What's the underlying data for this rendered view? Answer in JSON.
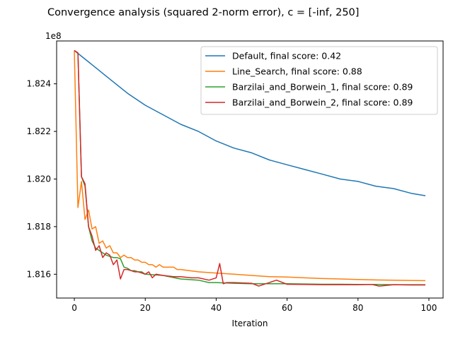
{
  "chart_data": {
    "type": "line",
    "title": "Convergence analysis (squared 2-norm error), c = [-inf, 250]",
    "xlabel": "Iteration",
    "ylabel": "",
    "y_offset_label": "1e8",
    "y_scale": 100000000,
    "xlim": [
      -5,
      104
    ],
    "ylim": [
      181.5,
      182.58
    ],
    "x_ticks": [
      0,
      20,
      40,
      60,
      80,
      100
    ],
    "x_tick_labels": [
      "0",
      "20",
      "40",
      "60",
      "80",
      "100"
    ],
    "y_ticks": [
      181.6,
      181.8,
      182.0,
      182.2,
      182.4
    ],
    "y_tick_labels": [
      "1.816",
      "1.818",
      "1.820",
      "1.822",
      "1.824"
    ],
    "legend_position": "top-right",
    "series": [
      {
        "name": "Default, final score: 0.42",
        "color": "#1f77b4",
        "x": [
          0,
          5,
          10,
          15,
          20,
          25,
          30,
          35,
          40,
          45,
          50,
          55,
          60,
          65,
          70,
          75,
          80,
          85,
          90,
          95,
          99
        ],
        "y": [
          182.54,
          182.48,
          182.42,
          182.36,
          182.31,
          182.27,
          182.23,
          182.2,
          182.16,
          182.13,
          182.11,
          182.08,
          182.06,
          182.04,
          182.02,
          182.0,
          181.99,
          181.97,
          181.96,
          181.94,
          181.93
        ]
      },
      {
        "name": "Line_Search, final score: 0.88",
        "color": "#ff7f0e",
        "x": [
          0,
          1,
          2,
          3,
          4,
          5,
          6,
          7,
          8,
          9,
          10,
          11,
          12,
          13,
          14,
          15,
          16,
          17,
          18,
          19,
          20,
          21,
          22,
          23,
          24,
          25,
          26,
          27,
          28,
          29,
          30,
          35,
          40,
          45,
          50,
          55,
          60,
          65,
          70,
          75,
          80,
          85,
          90,
          95,
          99
        ],
        "y": [
          182.54,
          181.88,
          181.99,
          181.83,
          181.87,
          181.79,
          181.8,
          181.73,
          181.74,
          181.71,
          181.72,
          181.69,
          181.69,
          181.67,
          181.68,
          181.67,
          181.67,
          181.66,
          181.66,
          181.65,
          181.65,
          181.64,
          181.64,
          181.63,
          181.64,
          181.63,
          181.63,
          181.63,
          181.63,
          181.62,
          181.62,
          181.61,
          181.605,
          181.6,
          181.595,
          181.59,
          181.588,
          181.585,
          181.582,
          181.58,
          181.578,
          181.576,
          181.575,
          181.574,
          181.573
        ]
      },
      {
        "name": "Barzilai_and_Borwein_1, final score: 0.89",
        "color": "#2ca02c",
        "x": [
          0,
          1,
          2,
          3,
          4,
          5,
          6,
          7,
          8,
          9,
          10,
          11,
          12,
          13,
          14,
          15,
          16,
          17,
          18,
          19,
          20,
          25,
          30,
          35,
          38,
          40,
          45,
          50,
          55,
          60,
          65,
          70,
          75,
          80,
          85,
          90,
          95,
          99
        ],
        "y": [
          182.54,
          182.53,
          182.01,
          181.97,
          181.8,
          181.74,
          181.71,
          181.7,
          181.69,
          181.68,
          181.675,
          181.67,
          181.67,
          181.665,
          181.63,
          181.625,
          181.615,
          181.615,
          181.61,
          181.61,
          181.6,
          181.595,
          181.58,
          181.575,
          181.565,
          181.565,
          181.562,
          181.56,
          181.56,
          181.56,
          181.559,
          181.558,
          181.558,
          181.557,
          181.557,
          181.556,
          181.556,
          181.556
        ]
      },
      {
        "name": "Barzilai_and_Borwein_2, final score: 0.89",
        "color": "#d62728",
        "x": [
          0,
          1,
          2,
          3,
          4,
          5,
          6,
          7,
          8,
          9,
          10,
          11,
          12,
          13,
          14,
          15,
          16,
          17,
          18,
          19,
          20,
          21,
          22,
          23,
          25,
          28,
          30,
          33,
          35,
          38,
          40,
          41,
          42,
          43,
          45,
          50,
          52,
          55,
          57,
          60,
          65,
          70,
          75,
          80,
          84,
          86,
          90,
          95,
          99
        ],
        "y": [
          182.54,
          182.53,
          182.01,
          181.98,
          181.8,
          181.76,
          181.7,
          181.72,
          181.67,
          181.69,
          181.68,
          181.64,
          181.66,
          181.58,
          181.62,
          181.62,
          181.615,
          181.61,
          181.61,
          181.605,
          181.6,
          181.61,
          181.585,
          181.6,
          181.595,
          181.59,
          181.59,
          181.585,
          181.585,
          181.575,
          181.585,
          181.645,
          181.56,
          181.565,
          181.565,
          181.562,
          181.55,
          181.565,
          181.575,
          181.558,
          181.557,
          181.556,
          181.556,
          181.556,
          181.557,
          181.55,
          181.556,
          181.555,
          181.555
        ]
      }
    ]
  }
}
